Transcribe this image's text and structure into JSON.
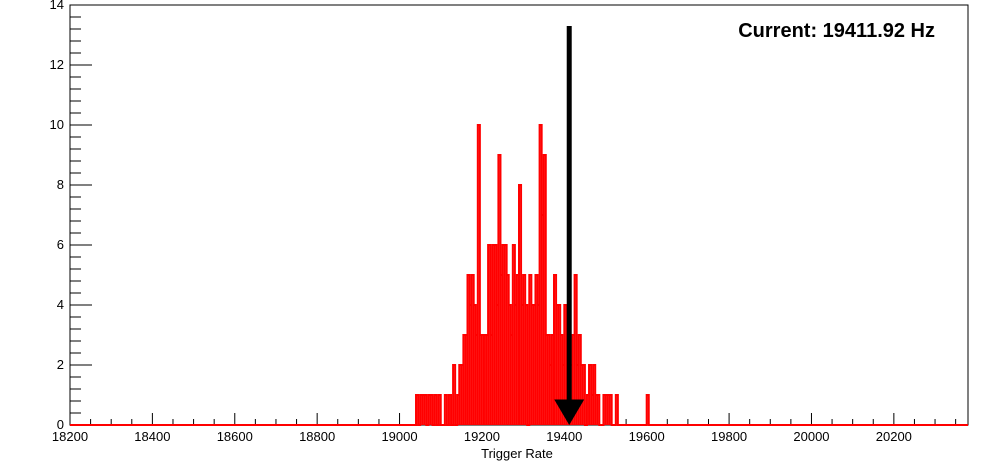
{
  "chart_data": {
    "type": "histogram",
    "title": "",
    "xlabel": "Trigger Rate",
    "ylabel": "",
    "xlim": [
      18200,
      20380
    ],
    "ylim": [
      0,
      14
    ],
    "x_ticks": [
      18200,
      18400,
      18600,
      18800,
      19000,
      19200,
      19400,
      19600,
      19800,
      20000,
      20200
    ],
    "y_ticks": [
      0,
      2,
      4,
      6,
      8,
      10,
      12,
      14
    ],
    "grid": false,
    "annotation": {
      "text": "Current: 19411.92 Hz",
      "value": 19411.92
    },
    "colors": {
      "histogram": "#ff0000",
      "arrow": "#000000",
      "axis": "#000000"
    },
    "series": [
      {
        "bins": [
          [
            19040,
            1
          ],
          [
            19045,
            0
          ],
          [
            19050,
            1
          ],
          [
            19055,
            1
          ],
          [
            19060,
            1
          ],
          [
            19065,
            0
          ],
          [
            19070,
            1
          ],
          [
            19075,
            1
          ],
          [
            19080,
            0
          ],
          [
            19085,
            1
          ],
          [
            19090,
            0
          ],
          [
            19095,
            1
          ],
          [
            19100,
            0
          ],
          [
            19105,
            0
          ],
          [
            19110,
            1
          ],
          [
            19115,
            0
          ],
          [
            19120,
            1
          ],
          [
            19125,
            0
          ],
          [
            19130,
            2
          ],
          [
            19135,
            0
          ],
          [
            19140,
            1
          ],
          [
            19145,
            2
          ],
          [
            19150,
            2
          ],
          [
            19155,
            3
          ],
          [
            19160,
            3
          ],
          [
            19165,
            5
          ],
          [
            19170,
            4
          ],
          [
            19175,
            5
          ],
          [
            19180,
            4
          ],
          [
            19185,
            3
          ],
          [
            19190,
            10
          ],
          [
            19195,
            3
          ],
          [
            19200,
            3
          ],
          [
            19205,
            3
          ],
          [
            19210,
            3
          ],
          [
            19215,
            6
          ],
          [
            19220,
            3
          ],
          [
            19225,
            6
          ],
          [
            19230,
            6
          ],
          [
            19235,
            4
          ],
          [
            19240,
            9
          ],
          [
            19245,
            5
          ],
          [
            19250,
            6
          ],
          [
            19255,
            6
          ],
          [
            19260,
            5
          ],
          [
            19265,
            4
          ],
          [
            19270,
            3
          ],
          [
            19275,
            6
          ],
          [
            19280,
            4
          ],
          [
            19285,
            5
          ],
          [
            19290,
            8
          ],
          [
            19295,
            4
          ],
          [
            19300,
            5
          ],
          [
            19305,
            4
          ],
          [
            19310,
            0
          ],
          [
            19315,
            5
          ],
          [
            19320,
            4
          ],
          [
            19325,
            4
          ],
          [
            19330,
            5
          ],
          [
            19335,
            4
          ],
          [
            19340,
            10
          ],
          [
            19345,
            7
          ],
          [
            19350,
            9
          ],
          [
            19355,
            3
          ],
          [
            19360,
            3
          ],
          [
            19365,
            2
          ],
          [
            19370,
            3
          ],
          [
            19375,
            5
          ],
          [
            19380,
            4
          ],
          [
            19385,
            4
          ],
          [
            19390,
            3
          ],
          [
            19395,
            2
          ],
          [
            19400,
            4
          ],
          [
            19405,
            2
          ],
          [
            19410,
            3
          ],
          [
            19415,
            2
          ],
          [
            19420,
            3
          ],
          [
            19425,
            5
          ],
          [
            19430,
            2
          ],
          [
            19435,
            3
          ],
          [
            19440,
            2
          ],
          [
            19445,
            2
          ],
          [
            19450,
            0
          ],
          [
            19455,
            1
          ],
          [
            19460,
            2
          ],
          [
            19465,
            1
          ],
          [
            19470,
            2
          ],
          [
            19475,
            1
          ],
          [
            19480,
            1
          ],
          [
            19485,
            0
          ],
          [
            19490,
            0
          ],
          [
            19495,
            1
          ],
          [
            19500,
            1
          ],
          [
            19505,
            1
          ],
          [
            19510,
            1
          ],
          [
            19515,
            0
          ],
          [
            19520,
            0
          ],
          [
            19525,
            1
          ],
          [
            19530,
            0
          ],
          [
            19600,
            1
          ]
        ],
        "bin_width": 5
      }
    ]
  }
}
